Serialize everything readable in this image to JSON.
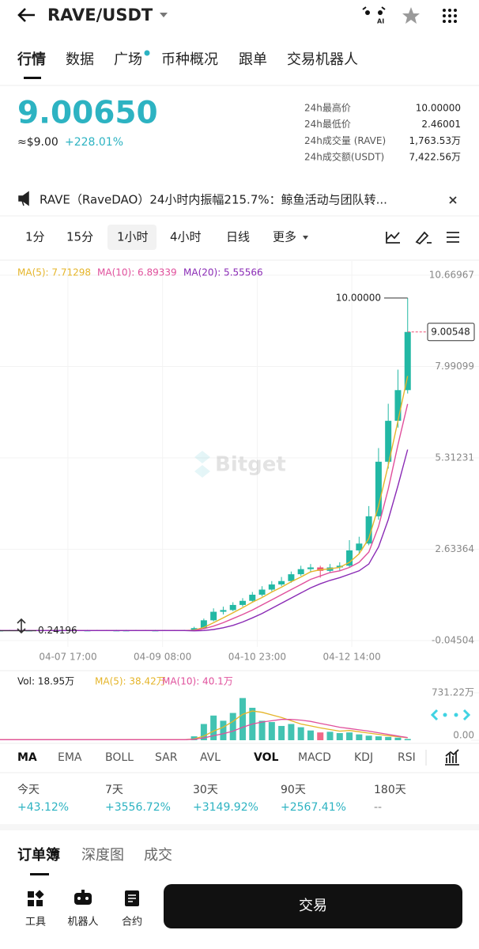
{
  "header": {
    "title": "RAVE/USDT",
    "ai_badge": "AI"
  },
  "tabs": [
    "行情",
    "数据",
    "广场",
    "币种概况",
    "跟单",
    "交易机器人"
  ],
  "price": {
    "last": "9.00650",
    "fiat": "≈$9.00",
    "change": "+228.01%"
  },
  "stats": [
    {
      "label": "24h最高价",
      "value": "10.00000"
    },
    {
      "label": "24h最低价",
      "value": "2.46001"
    },
    {
      "label": "24h成交量 (RAVE)",
      "value": "1,763.53万"
    },
    {
      "label": "24h成交额(USDT)",
      "value": "7,422.56万"
    }
  ],
  "news": "RAVE（RaveDAO）24小时内振幅215.7%：鲸鱼活动与团队转...",
  "intervals": [
    "1分",
    "15分",
    "1小时",
    "4小时",
    "日线",
    "更多"
  ],
  "watermark": "Bitget",
  "chart_data": [
    {
      "type": "candlestick",
      "x": [
        0,
        4,
        8,
        12,
        16,
        20,
        24,
        28,
        32,
        36,
        40,
        44,
        48,
        52,
        56,
        60,
        64,
        68,
        72,
        76,
        80,
        84,
        88,
        92,
        96,
        100,
        104,
        108,
        112,
        116,
        120,
        124,
        128,
        132,
        136,
        140,
        144,
        148,
        152,
        156,
        160,
        164,
        168
      ],
      "open": [
        0.25,
        0.25,
        0.26,
        0.25,
        0.25,
        0.26,
        0.25,
        0.25,
        0.26,
        0.25,
        0.25,
        0.26,
        0.25,
        0.25,
        0.25,
        0.26,
        0.25,
        0.25,
        0.26,
        0.25,
        0.26,
        0.32,
        0.55,
        0.8,
        0.85,
        1.0,
        1.12,
        1.3,
        1.45,
        1.6,
        1.7,
        1.9,
        2.05,
        2.1,
        2.0,
        2.1,
        2.15,
        2.6,
        2.8,
        3.6,
        5.2,
        6.4,
        7.3
      ],
      "high": [
        0.27,
        0.27,
        0.27,
        0.27,
        0.27,
        0.27,
        0.27,
        0.27,
        0.27,
        0.27,
        0.27,
        0.27,
        0.27,
        0.27,
        0.27,
        0.27,
        0.27,
        0.27,
        0.27,
        0.27,
        0.36,
        0.6,
        0.9,
        0.95,
        1.08,
        1.2,
        1.38,
        1.55,
        1.7,
        1.82,
        1.98,
        2.15,
        2.2,
        2.15,
        2.2,
        2.25,
        2.9,
        3.0,
        3.9,
        5.6,
        6.9,
        7.9,
        10.0
      ],
      "low": [
        0.245,
        0.245,
        0.245,
        0.245,
        0.245,
        0.245,
        0.245,
        0.245,
        0.24196,
        0.245,
        0.245,
        0.245,
        0.245,
        0.245,
        0.245,
        0.245,
        0.245,
        0.245,
        0.245,
        0.245,
        0.25,
        0.3,
        0.52,
        0.72,
        0.82,
        0.95,
        1.08,
        1.25,
        1.4,
        1.55,
        1.65,
        1.85,
        1.95,
        1.8,
        1.95,
        2.0,
        2.1,
        2.5,
        2.75,
        3.5,
        5.0,
        6.2,
        7.2
      ],
      "close": [
        0.25,
        0.26,
        0.25,
        0.25,
        0.26,
        0.25,
        0.25,
        0.26,
        0.25,
        0.25,
        0.26,
        0.25,
        0.25,
        0.25,
        0.26,
        0.25,
        0.25,
        0.26,
        0.25,
        0.26,
        0.32,
        0.55,
        0.8,
        0.85,
        1.0,
        1.12,
        1.3,
        1.45,
        1.6,
        1.7,
        1.9,
        2.05,
        2.1,
        2.0,
        2.1,
        2.15,
        2.6,
        2.8,
        3.6,
        5.2,
        6.4,
        7.3,
        9.00548
      ],
      "up_color": "#22b8a4",
      "down_color": "#ee4f72",
      "series": [
        {
          "name": "MA(5): 7.71298",
          "color": "#e5b52a",
          "values": [
            0.25,
            0.25,
            0.25,
            0.25,
            0.25,
            0.25,
            0.25,
            0.25,
            0.25,
            0.25,
            0.25,
            0.25,
            0.25,
            0.25,
            0.25,
            0.25,
            0.25,
            0.25,
            0.25,
            0.25,
            0.26,
            0.34,
            0.48,
            0.62,
            0.77,
            0.92,
            1.08,
            1.22,
            1.38,
            1.52,
            1.68,
            1.82,
            1.97,
            2.03,
            2.06,
            2.1,
            2.25,
            2.5,
            2.95,
            3.9,
            5.1,
            6.4,
            7.71298
          ]
        },
        {
          "name": "MA(10): 6.89339",
          "color": "#e0509c",
          "values": [
            0.25,
            0.25,
            0.25,
            0.25,
            0.25,
            0.25,
            0.25,
            0.25,
            0.25,
            0.25,
            0.25,
            0.25,
            0.25,
            0.25,
            0.25,
            0.25,
            0.25,
            0.25,
            0.25,
            0.25,
            0.25,
            0.3,
            0.38,
            0.48,
            0.6,
            0.72,
            0.85,
            1.0,
            1.15,
            1.3,
            1.45,
            1.6,
            1.75,
            1.85,
            1.95,
            2.0,
            2.1,
            2.25,
            2.55,
            3.3,
            4.4,
            5.7,
            6.89339
          ]
        },
        {
          "name": "MA(20): 5.55566",
          "color": "#8a2bb5",
          "values": [
            0.25,
            0.25,
            0.25,
            0.25,
            0.25,
            0.25,
            0.25,
            0.25,
            0.25,
            0.25,
            0.25,
            0.25,
            0.25,
            0.25,
            0.25,
            0.25,
            0.25,
            0.25,
            0.25,
            0.25,
            0.24,
            0.25,
            0.28,
            0.33,
            0.4,
            0.5,
            0.62,
            0.75,
            0.9,
            1.05,
            1.2,
            1.35,
            1.5,
            1.62,
            1.72,
            1.8,
            1.9,
            2.0,
            2.2,
            2.7,
            3.5,
            4.5,
            5.55566
          ]
        }
      ],
      "xlim": [
        0,
        197.4
      ],
      "xticks": [
        {
          "value": 28,
          "label": "04-07 17:00"
        },
        {
          "value": 67,
          "label": "04-09 08:00"
        },
        {
          "value": 106,
          "label": "04-10 23:00"
        },
        {
          "value": 145,
          "label": "04-12 14:00"
        }
      ],
      "ylim": [
        -0.04504,
        10.66967
      ],
      "yticks": [
        -0.04504,
        2.63364,
        5.31231,
        7.99099,
        10.66967
      ],
      "grid": true,
      "high_label": {
        "value": 10,
        "label": "10.00000"
      },
      "last_price": {
        "value": 9.00548,
        "label": "9.00548"
      },
      "low_label": {
        "value": 0.24196,
        "label": "0.24196"
      }
    },
    {
      "type": "bar",
      "label": "Vol: 18.95万",
      "x": [
        0,
        4,
        8,
        12,
        16,
        20,
        24,
        28,
        32,
        36,
        40,
        44,
        48,
        52,
        56,
        60,
        64,
        68,
        72,
        76,
        80,
        84,
        88,
        92,
        96,
        100,
        104,
        108,
        112,
        116,
        120,
        124,
        128,
        132,
        136,
        140,
        144,
        148,
        152,
        156,
        160,
        164,
        168
      ],
      "values": [
        8,
        10,
        7,
        9,
        12,
        8,
        6,
        10,
        9,
        7,
        11,
        8,
        9,
        6,
        10,
        8,
        7,
        12,
        9,
        10,
        60,
        250,
        380,
        300,
        420,
        650,
        500,
        300,
        280,
        220,
        250,
        200,
        150,
        120,
        130,
        110,
        120,
        90,
        70,
        60,
        50,
        40,
        18.95
      ],
      "series": [
        {
          "name": "MA(5): 38.42万",
          "color": "#e5b52a",
          "values": [
            9,
            9,
            9,
            9,
            9,
            9,
            9,
            9,
            9,
            9,
            9,
            9,
            9,
            9,
            9,
            9,
            9,
            9,
            9,
            9,
            20,
            65,
            140,
            200,
            290,
            400,
            450,
            430,
            390,
            350,
            300,
            250,
            220,
            190,
            165,
            140,
            150,
            130,
            110,
            90,
            70,
            55,
            38.42
          ]
        },
        {
          "name": "MA(10): 40.1万",
          "color": "#e0509c",
          "values": [
            9,
            9,
            9,
            9,
            9,
            9,
            9,
            9,
            9,
            9,
            9,
            9,
            9,
            9,
            9,
            9,
            9,
            9,
            9,
            9,
            15,
            35,
            70,
            100,
            140,
            200,
            250,
            280,
            300,
            320,
            320,
            310,
            290,
            260,
            230,
            200,
            180,
            160,
            140,
            115,
            90,
            65,
            40.1
          ]
        }
      ],
      "xlim": [
        0,
        197.4
      ],
      "ylim": [
        0,
        731.22
      ],
      "yticks": [
        {
          "value": 0,
          "label": "0.00"
        },
        {
          "value": 731.22,
          "label": "731.22万"
        }
      ]
    }
  ],
  "indicators": [
    "MA",
    "EMA",
    "BOLL",
    "SAR",
    "AVL",
    "VOL",
    "MACD",
    "KDJ",
    "RSI"
  ],
  "performance": [
    {
      "period": "今天",
      "change": "+43.12%"
    },
    {
      "period": "7天",
      "change": "+3556.72%"
    },
    {
      "period": "30天",
      "change": "+3149.92%"
    },
    {
      "period": "90天",
      "change": "+2567.41%"
    },
    {
      "period": "180天",
      "change": "--"
    }
  ],
  "orderbook_tabs": [
    "订单簿",
    "深度图",
    "成交"
  ],
  "bottom_nav": [
    "工具",
    "机器人",
    "合约"
  ],
  "trade_button": "交易"
}
